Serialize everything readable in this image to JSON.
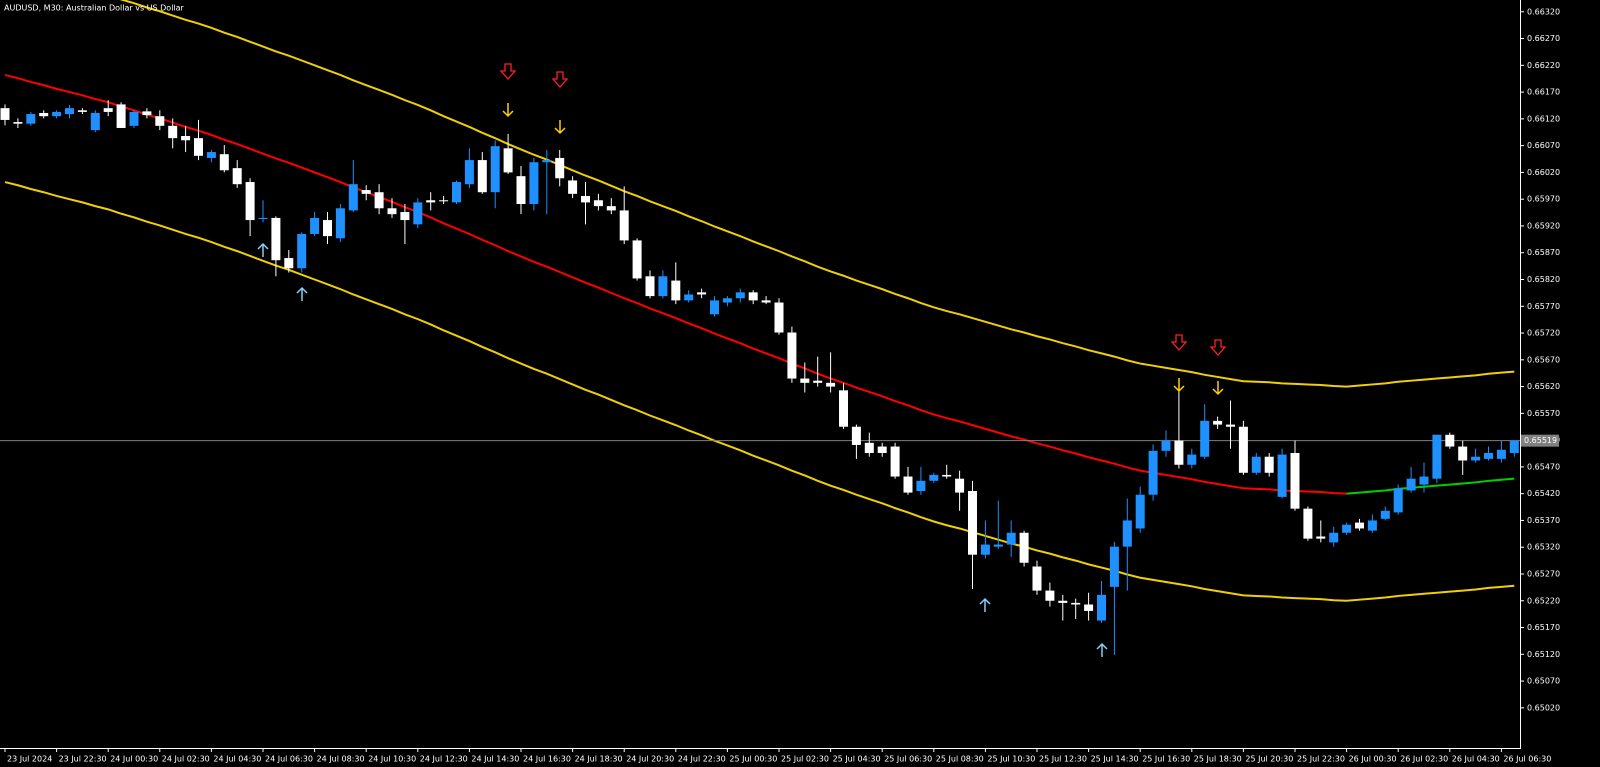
{
  "chart_data": {
    "type": "candlestick",
    "title": "AUDUSD, M30:  Australian Dollar vs US Dollar",
    "categories": [
      "23 Jul 2024",
      null,
      null,
      null,
      "23 Jul 22:30",
      null,
      null,
      null,
      "24 Jul 00:30",
      null,
      null,
      null,
      "24 Jul 02:30",
      null,
      null,
      null,
      "24 Jul 04:30",
      null,
      null,
      null,
      "24 Jul 06:30",
      null,
      null,
      null,
      "24 Jul 08:30",
      null,
      null,
      null,
      "24 Jul 10:30",
      null,
      null,
      null,
      "24 Jul 12:30",
      null,
      null,
      null,
      "24 Jul 14:30",
      null,
      null,
      null,
      "24 Jul 16:30",
      null,
      null,
      null,
      "24 Jul 18:30",
      null,
      null,
      null,
      "24 Jul 20:30",
      null,
      null,
      null,
      "24 Jul 22:30",
      null,
      null,
      null,
      "25 Jul 00:30",
      null,
      null,
      null,
      "25 Jul 02:30",
      null,
      null,
      null,
      "25 Jul 04:30",
      null,
      null,
      null,
      "25 Jul 06:30",
      null,
      null,
      null,
      "25 Jul 08:30",
      null,
      null,
      null,
      "25 Jul 10:30",
      null,
      null,
      null,
      "25 Jul 12:30",
      null,
      null,
      null,
      "25 Jul 14:30",
      null,
      null,
      null,
      "25 Jul 16:30",
      null,
      null,
      null,
      "25 Jul 18:30",
      null,
      null,
      null,
      "25 Jul 20:30",
      null,
      null,
      null,
      "25 Jul 22:30",
      null,
      null,
      null,
      "26 Jul 00:30",
      null,
      null,
      null,
      "26 Jul 02:30",
      null,
      null,
      null,
      "26 Jul 04:30",
      null,
      null,
      null,
      "26 Jul 06:30",
      null
    ],
    "open": [
      0.6614,
      0.66114,
      0.66111,
      0.66131,
      0.66125,
      0.66129,
      0.66136,
      0.66099,
      0.6614,
      0.66147,
      0.66107,
      0.66134,
      0.66125,
      0.66107,
      0.66088,
      0.66084,
      0.66047,
      0.66054,
      0.66028,
      0.66002,
      0.65933,
      0.65935,
      0.6586,
      0.65841,
      0.65905,
      0.65931,
      0.65897,
      0.65949,
      0.65987,
      0.65983,
      0.65953,
      0.65946,
      0.65923,
      0.65968,
      0.65968,
      0.65964,
      0.65998,
      0.66043,
      0.65983,
      0.66065,
      0.66013,
      0.65961,
      0.66039,
      0.66047,
      0.66005,
      0.65976,
      0.65968,
      0.65957,
      0.65949,
      0.65893,
      0.65826,
      0.65789,
      0.65818,
      0.65781,
      0.65796,
      0.65755,
      0.65777,
      0.65785,
      0.65796,
      0.65781,
      0.65777,
      0.65721,
      0.65635,
      0.65631,
      0.65627,
      0.65613,
      0.65545,
      0.65515,
      0.65508,
      0.65508,
      0.65452,
      0.65425,
      0.65444,
      0.65455,
      0.65448,
      0.65425,
      0.65306,
      0.65321,
      0.65325,
      0.65347,
      0.65284,
      0.65239,
      0.6522,
      0.65216,
      0.65213,
      0.65183,
      0.65246,
      0.65321,
      0.65355,
      0.65418,
      0.655,
      0.65519,
      0.65474,
      0.65489,
      0.65556,
      0.65549,
      0.65545,
      0.65459,
      0.65489,
      0.65414,
      0.65496,
      0.65392,
      0.6534,
      0.65329,
      0.65347,
      0.65366,
      0.65351,
      0.65373,
      0.65385,
      0.65426,
      0.65437,
      0.65448,
      0.6553,
      0.65508,
      0.65482,
      0.65485,
      0.65485,
      0.65496
    ],
    "high": [
      0.66147,
      0.66121,
      0.66133,
      0.66136,
      0.66136,
      0.66146,
      0.6614,
      0.66136,
      0.66155,
      0.66151,
      0.66136,
      0.6614,
      0.66136,
      0.66121,
      0.66107,
      0.66118,
      0.66062,
      0.66071,
      0.66043,
      0.66009,
      0.65968,
      0.65938,
      0.65875,
      0.65908,
      0.65946,
      0.65946,
      0.65961,
      0.66043,
      0.65996,
      0.65998,
      0.65972,
      0.65961,
      0.65972,
      0.65983,
      0.65976,
      0.66005,
      0.66065,
      0.66058,
      0.6608,
      0.66092,
      0.66032,
      0.66047,
      0.66062,
      0.66062,
      0.66013,
      0.66002,
      0.6598,
      0.65972,
      0.65994,
      0.65897,
      0.65837,
      0.65837,
      0.65852,
      0.658,
      0.65803,
      0.65789,
      0.65789,
      0.65803,
      0.658,
      0.65789,
      0.65785,
      0.65732,
      0.65665,
      0.65676,
      0.65684,
      0.65627,
      0.65549,
      0.65534,
      0.65515,
      0.65515,
      0.6547,
      0.6547,
      0.65459,
      0.65474,
      0.65463,
      0.65444,
      0.6537,
      0.65407,
      0.6537,
      0.65351,
      0.65295,
      0.65254,
      0.65231,
      0.65224,
      0.65235,
      0.65257,
      0.6533,
      0.65411,
      0.65433,
      0.65512,
      0.65538,
      0.6562,
      0.65504,
      0.65587,
      0.65564,
      0.65594,
      0.65556,
      0.65496,
      0.65496,
      0.65504,
      0.65519,
      0.65396,
      0.6537,
      0.65358,
      0.65366,
      0.65373,
      0.65381,
      0.65396,
      0.65437,
      0.6547,
      0.65478,
      0.6553,
      0.65534,
      0.65519,
      0.65504,
      0.65508,
      0.65519,
      0.65519
    ],
    "low": [
      0.66108,
      0.66103,
      0.66107,
      0.66121,
      0.66121,
      0.66121,
      0.66129,
      0.66095,
      0.66125,
      0.66103,
      0.66103,
      0.66121,
      0.66099,
      0.66065,
      0.66058,
      0.66043,
      0.66039,
      0.6602,
      0.65991,
      0.65901,
      0.65927,
      0.65826,
      0.65833,
      0.65833,
      0.65901,
      0.65886,
      0.6589,
      0.65946,
      0.65968,
      0.65942,
      0.65935,
      0.65886,
      0.65916,
      0.65949,
      0.65961,
      0.65961,
      0.65991,
      0.6598,
      0.65953,
      0.66017,
      0.65942,
      0.65949,
      0.65942,
      0.65994,
      0.65972,
      0.65923,
      0.65949,
      0.65942,
      0.65886,
      0.65818,
      0.65785,
      0.65785,
      0.65774,
      0.65777,
      0.65785,
      0.65751,
      0.6577,
      0.65777,
      0.65774,
      0.65774,
      0.65717,
      0.65627,
      0.65609,
      0.6562,
      0.65609,
      0.65541,
      0.65485,
      0.65489,
      0.65489,
      0.65448,
      0.65418,
      0.65418,
      0.6544,
      0.65448,
      0.65388,
      0.65242,
      0.65299,
      0.65317,
      0.65302,
      0.65284,
      0.65231,
      0.65209,
      0.65183,
      0.65186,
      0.65183,
      0.65179,
      0.65119,
      0.65239,
      0.65347,
      0.65407,
      0.65489,
      0.65467,
      0.65467,
      0.65485,
      0.65541,
      0.65504,
      0.65455,
      0.65455,
      0.65452,
      0.65411,
      0.65388,
      0.65332,
      0.65329,
      0.65321,
      0.65343,
      0.65351,
      0.65347,
      0.6537,
      0.65381,
      0.65422,
      0.65422,
      0.6544,
      0.65504,
      0.65455,
      0.65478,
      0.65482,
      0.65478,
      0.65489
    ],
    "close": [
      0.66118,
      0.66111,
      0.66129,
      0.66125,
      0.66133,
      0.6614,
      0.66133,
      0.66131,
      0.66133,
      0.66103,
      0.66133,
      0.66127,
      0.66107,
      0.66084,
      0.6608,
      0.66051,
      0.66058,
      0.66024,
      0.65998,
      0.65931,
      0.65935,
      0.65856,
      0.65841,
      0.65905,
      0.65935,
      0.65901,
      0.65953,
      0.65998,
      0.6598,
      0.65953,
      0.65942,
      0.65931,
      0.65964,
      0.65964,
      0.65966,
      0.66002,
      0.66043,
      0.65983,
      0.66069,
      0.6602,
      0.65961,
      0.66039,
      0.66043,
      0.66009,
      0.6598,
      0.65964,
      0.65957,
      0.65949,
      0.65893,
      0.65822,
      0.65789,
      0.65826,
      0.65781,
      0.65792,
      0.65792,
      0.65781,
      0.65785,
      0.65796,
      0.65781,
      0.65777,
      0.65721,
      0.65635,
      0.65627,
      0.65627,
      0.6562,
      0.65545,
      0.65511,
      0.65496,
      0.65496,
      0.65452,
      0.65422,
      0.65444,
      0.65455,
      0.65452,
      0.65422,
      0.65306,
      0.65325,
      0.65325,
      0.65347,
      0.65291,
      0.65239,
      0.6522,
      0.65216,
      0.65213,
      0.65201,
      0.65231,
      0.65321,
      0.6537,
      0.65418,
      0.655,
      0.65519,
      0.65474,
      0.65493,
      0.65556,
      0.65549,
      0.65545,
      0.65459,
      0.65489,
      0.65459,
      0.65493,
      0.65392,
      0.65336,
      0.65336,
      0.65347,
      0.65362,
      0.65355,
      0.6537,
      0.65388,
      0.6543,
      0.65448,
      0.65452,
      0.6553,
      0.65508,
      0.65482,
      0.65489,
      0.65496,
      0.65502,
      0.65519
    ],
    "up_color": "#1e90ff",
    "down_color": "#ffffff",
    "price_line_color": "#808080",
    "overlays": [
      {
        "color": "#f0d000",
        "values": [
          0.66402,
          0.66396,
          0.66389,
          0.66383,
          0.66376,
          0.6637,
          0.66364,
          0.66357,
          0.66351,
          0.66343,
          0.66336,
          0.66328,
          0.66321,
          0.66313,
          0.66305,
          0.66298,
          0.6629,
          0.66281,
          0.66273,
          0.66264,
          0.66255,
          0.66246,
          0.66238,
          0.66229,
          0.6622,
          0.66211,
          0.66202,
          0.66192,
          0.66183,
          0.66174,
          0.66165,
          0.66155,
          0.66146,
          0.66136,
          0.66125,
          0.66115,
          0.66105,
          0.66094,
          0.66084,
          0.66073,
          0.66063,
          0.66053,
          0.66044,
          0.66034,
          0.66024,
          0.66014,
          0.66005,
          0.65995,
          0.65985,
          0.65976,
          0.65966,
          0.65957,
          0.65948,
          0.65938,
          0.65929,
          0.65919,
          0.6591,
          0.65901,
          0.65891,
          0.65882,
          0.65873,
          0.65863,
          0.65854,
          0.65844,
          0.65835,
          0.65827,
          0.65818,
          0.6581,
          0.65802,
          0.65793,
          0.65785,
          0.65776,
          0.65768,
          0.65761,
          0.65755,
          0.65748,
          0.65741,
          0.65734,
          0.65727,
          0.65721,
          0.65714,
          0.65708,
          0.65701,
          0.65695,
          0.65688,
          0.65682,
          0.65676,
          0.65669,
          0.65663,
          0.65659,
          0.65655,
          0.65651,
          0.65647,
          0.65642,
          0.65638,
          0.65634,
          0.6563,
          0.65629,
          0.65628,
          0.65626,
          0.65625,
          0.65624,
          0.65623,
          0.65621,
          0.6562,
          0.65622,
          0.65624,
          0.65626,
          0.65629,
          0.65631,
          0.65633,
          0.65635,
          0.65637,
          0.65639,
          0.65641,
          0.65644,
          0.65646,
          0.65648
        ]
      },
      {
        "color": "#ff0000",
        "rising_color": "#00d000",
        "values": [
          0.66202,
          0.66196,
          0.66189,
          0.66183,
          0.66176,
          0.6617,
          0.66164,
          0.66157,
          0.66151,
          0.66143,
          0.66136,
          0.66128,
          0.66121,
          0.66113,
          0.66105,
          0.66098,
          0.6609,
          0.66081,
          0.66073,
          0.66064,
          0.66055,
          0.66046,
          0.66038,
          0.66029,
          0.6602,
          0.66011,
          0.66002,
          0.65992,
          0.65983,
          0.65974,
          0.65965,
          0.65955,
          0.65946,
          0.65936,
          0.65925,
          0.65915,
          0.65905,
          0.65894,
          0.65884,
          0.65873,
          0.65863,
          0.65853,
          0.65844,
          0.65834,
          0.65824,
          0.65814,
          0.65805,
          0.65795,
          0.65785,
          0.65776,
          0.65766,
          0.65757,
          0.65748,
          0.65738,
          0.65729,
          0.65719,
          0.6571,
          0.65701,
          0.65691,
          0.65682,
          0.65673,
          0.65663,
          0.65654,
          0.65644,
          0.65635,
          0.65627,
          0.65618,
          0.6561,
          0.65602,
          0.65593,
          0.65585,
          0.65576,
          0.65568,
          0.65561,
          0.65555,
          0.65548,
          0.65541,
          0.65534,
          0.65527,
          0.65521,
          0.65514,
          0.65508,
          0.65501,
          0.65495,
          0.65488,
          0.65482,
          0.65476,
          0.65469,
          0.65463,
          0.65459,
          0.65455,
          0.65451,
          0.65447,
          0.65442,
          0.65438,
          0.65434,
          0.6543,
          0.65429,
          0.65428,
          0.65426,
          0.65425,
          0.65424,
          0.65423,
          0.65421,
          0.6542,
          0.65422,
          0.65424,
          0.65426,
          0.65429,
          0.65431,
          0.65433,
          0.65435,
          0.65437,
          0.65439,
          0.65441,
          0.65444,
          0.65446,
          0.65448
        ]
      },
      {
        "color": "#f0d000",
        "values": [
          0.66002,
          0.65996,
          0.65989,
          0.65983,
          0.65976,
          0.6597,
          0.65964,
          0.65957,
          0.65951,
          0.65943,
          0.65936,
          0.65928,
          0.65921,
          0.65913,
          0.65905,
          0.65898,
          0.6589,
          0.65881,
          0.65873,
          0.65864,
          0.65855,
          0.65846,
          0.65838,
          0.65829,
          0.6582,
          0.65811,
          0.65802,
          0.65792,
          0.65783,
          0.65774,
          0.65765,
          0.65755,
          0.65746,
          0.65736,
          0.65725,
          0.65715,
          0.65705,
          0.65694,
          0.65684,
          0.65673,
          0.65663,
          0.65653,
          0.65644,
          0.65634,
          0.65624,
          0.65614,
          0.65605,
          0.65595,
          0.65585,
          0.65576,
          0.65566,
          0.65557,
          0.65548,
          0.65538,
          0.65529,
          0.65519,
          0.6551,
          0.65501,
          0.65491,
          0.65482,
          0.65473,
          0.65463,
          0.65454,
          0.65444,
          0.65435,
          0.65427,
          0.65418,
          0.6541,
          0.65402,
          0.65393,
          0.65385,
          0.65376,
          0.65368,
          0.65361,
          0.65355,
          0.65348,
          0.65341,
          0.65334,
          0.65327,
          0.65321,
          0.65314,
          0.65308,
          0.65301,
          0.65295,
          0.65288,
          0.65282,
          0.65276,
          0.65269,
          0.65263,
          0.65259,
          0.65255,
          0.65251,
          0.65247,
          0.65242,
          0.65238,
          0.65234,
          0.6523,
          0.65229,
          0.65228,
          0.65226,
          0.65225,
          0.65224,
          0.65223,
          0.65221,
          0.6522,
          0.65222,
          0.65224,
          0.65226,
          0.65229,
          0.65231,
          0.65233,
          0.65235,
          0.65237,
          0.65239,
          0.65241,
          0.65244,
          0.65246,
          0.65248
        ]
      }
    ],
    "ylim": [
      0.64945,
      0.66342
    ],
    "yticks": [
      {
        "value": 0.6632,
        "label": "0.66320"
      },
      {
        "value": 0.6627,
        "label": "0.66270"
      },
      {
        "value": 0.6622,
        "label": "0.66220"
      },
      {
        "value": 0.6617,
        "label": "0.66170"
      },
      {
        "value": 0.6612,
        "label": "0.66120"
      },
      {
        "value": 0.6607,
        "label": "0.66070"
      },
      {
        "value": 0.6602,
        "label": "0.66020"
      },
      {
        "value": 0.6597,
        "label": "0.65970"
      },
      {
        "value": 0.6592,
        "label": "0.65920"
      },
      {
        "value": 0.6587,
        "label": "0.65870"
      },
      {
        "value": 0.6582,
        "label": "0.65820"
      },
      {
        "value": 0.6577,
        "label": "0.65770"
      },
      {
        "value": 0.6572,
        "label": "0.65720"
      },
      {
        "value": 0.6567,
        "label": "0.65670"
      },
      {
        "value": 0.6562,
        "label": "0.65620"
      },
      {
        "value": 0.6557,
        "label": "0.65570"
      },
      {
        "value": 0.6552,
        "label": "0.65520"
      },
      {
        "value": 0.6547,
        "label": "0.65470"
      },
      {
        "value": 0.6542,
        "label": "0.65420"
      },
      {
        "value": 0.6537,
        "label": "0.65370"
      },
      {
        "value": 0.6532,
        "label": "0.65320"
      },
      {
        "value": 0.6527,
        "label": "0.65270"
      },
      {
        "value": 0.6522,
        "label": "0.65220"
      },
      {
        "value": 0.6517,
        "label": "0.65170"
      },
      {
        "value": 0.6512,
        "label": "0.65120"
      },
      {
        "value": 0.6507,
        "label": "0.65070"
      },
      {
        "value": 0.6502,
        "label": "0.65020"
      }
    ],
    "grid": false
  }
}
